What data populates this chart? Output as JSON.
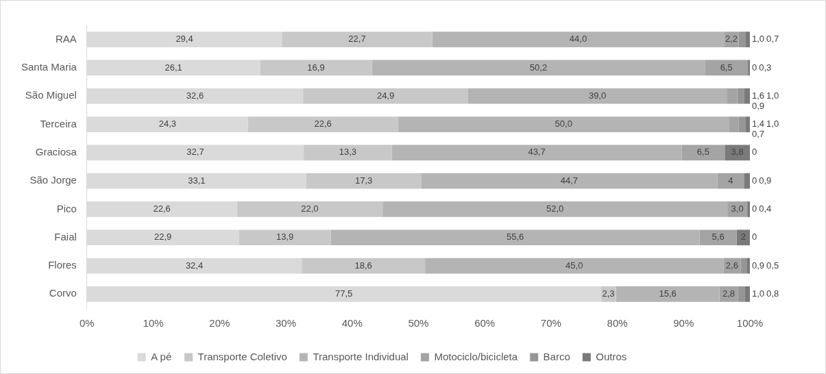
{
  "chart_data": {
    "type": "bar",
    "orientation": "horizontal",
    "stacked": true,
    "legend": "bottom",
    "grid": false,
    "categories": [
      "RAA",
      "Santa Maria",
      "São Miguel",
      "Terceira",
      "Graciosa",
      "São Jorge",
      "Pico",
      "Faial",
      "Flores",
      "Corvo"
    ],
    "xlim": [
      0,
      100
    ],
    "xticks": [
      {
        "value": 0,
        "label": "0%"
      },
      {
        "value": 10,
        "label": "10%"
      },
      {
        "value": 20,
        "label": "20%"
      },
      {
        "value": 30,
        "label": "30%"
      },
      {
        "value": 40,
        "label": "40%"
      },
      {
        "value": 50,
        "label": "50%"
      },
      {
        "value": 60,
        "label": "60%"
      },
      {
        "value": 70,
        "label": "70%"
      },
      {
        "value": 80,
        "label": "80%"
      },
      {
        "value": 90,
        "label": "90%"
      },
      {
        "value": 100,
        "label": "100%"
      }
    ],
    "series": [
      {
        "name": "A pé",
        "color": "#dadada",
        "values": [
          29.4,
          26.1,
          32.6,
          24.3,
          32.7,
          33.1,
          22.6,
          22.9,
          32.4,
          77.5
        ],
        "value_labels": [
          "29,4",
          "26,1",
          "32,6",
          "24,3",
          "32,7",
          "33,1",
          "22,6",
          "22,9",
          "32,4",
          "77,5"
        ]
      },
      {
        "name": "Transporte Coletivo",
        "color": "#c8c8c8",
        "values": [
          22.7,
          16.9,
          24.9,
          22.6,
          13.3,
          17.3,
          22.0,
          13.9,
          18.6,
          2.3
        ],
        "value_labels": [
          "22,7",
          "16,9",
          "24,9",
          "22,6",
          "13,3",
          "17,3",
          "22,0",
          "13,9",
          "18,6",
          "2,3"
        ]
      },
      {
        "name": "Transporte Individual",
        "color": "#b4b4b4",
        "values": [
          44.0,
          50.2,
          39.0,
          50.0,
          43.7,
          44.7,
          52.0,
          55.6,
          45.0,
          15.6
        ],
        "value_labels": [
          "44,0",
          "50,2",
          "39,0",
          "50,0",
          "43,7",
          "44,7",
          "52,0",
          "55,6",
          "45,0",
          "15,6"
        ]
      },
      {
        "name": "Motociclo/bicicleta",
        "color": "#a4a4a4",
        "values": [
          2.2,
          6.5,
          1.6,
          1.4,
          6.5,
          4.0,
          3.0,
          5.6,
          2.6,
          2.8
        ],
        "value_labels": [
          "2,2",
          "6,5",
          "1,6",
          "1,4",
          "6,5",
          "4",
          "3,0",
          "5,6",
          "2,6",
          "2,8"
        ]
      },
      {
        "name": "Barco",
        "color": "#969696",
        "values": [
          1.0,
          0,
          1.0,
          1.0,
          0,
          0,
          0,
          0,
          0.9,
          1.0
        ],
        "value_labels": [
          "1,0",
          "0",
          "1,0",
          "1,0",
          "0",
          "0",
          "0",
          "0",
          "0,9",
          "1,0"
        ]
      },
      {
        "name": "Outros",
        "color": "#7a7a7a",
        "values": [
          0.7,
          0.3,
          0.9,
          0.7,
          3.8,
          0.9,
          0.4,
          2,
          0.5,
          0.8
        ],
        "value_labels": [
          "0,7",
          "0,3",
          "0,9",
          "0,7",
          "3,8",
          "0,9",
          "0,4",
          "2",
          "0,5",
          "0,8"
        ]
      }
    ]
  }
}
